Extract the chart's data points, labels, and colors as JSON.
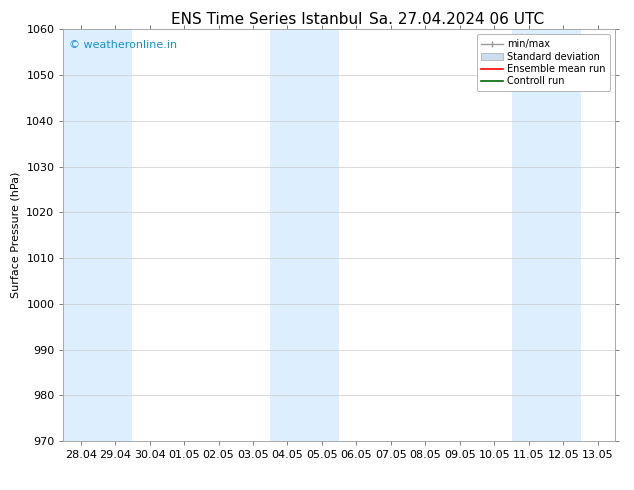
{
  "title": "ENS Time Series Istanbul",
  "title2": "Sa. 27.04.2024 06 UTC",
  "ylabel": "Surface Pressure (hPa)",
  "ylim": [
    970,
    1060
  ],
  "yticks": [
    970,
    980,
    990,
    1000,
    1010,
    1020,
    1030,
    1040,
    1050,
    1060
  ],
  "x_labels": [
    "28.04",
    "29.04",
    "30.04",
    "01.05",
    "02.05",
    "03.05",
    "04.05",
    "05.05",
    "06.05",
    "07.05",
    "08.05",
    "09.05",
    "10.05",
    "11.05",
    "12.05",
    "13.05"
  ],
  "shaded_columns": [
    0,
    1,
    6,
    7,
    13,
    14
  ],
  "shaded_color": "#ddeeff",
  "bg_color": "#ffffff",
  "watermark_text": "© weatheronline.in",
  "watermark_color": "#1a8fcc",
  "title_fontsize": 11,
  "axis_label_fontsize": 8,
  "tick_fontsize": 8
}
